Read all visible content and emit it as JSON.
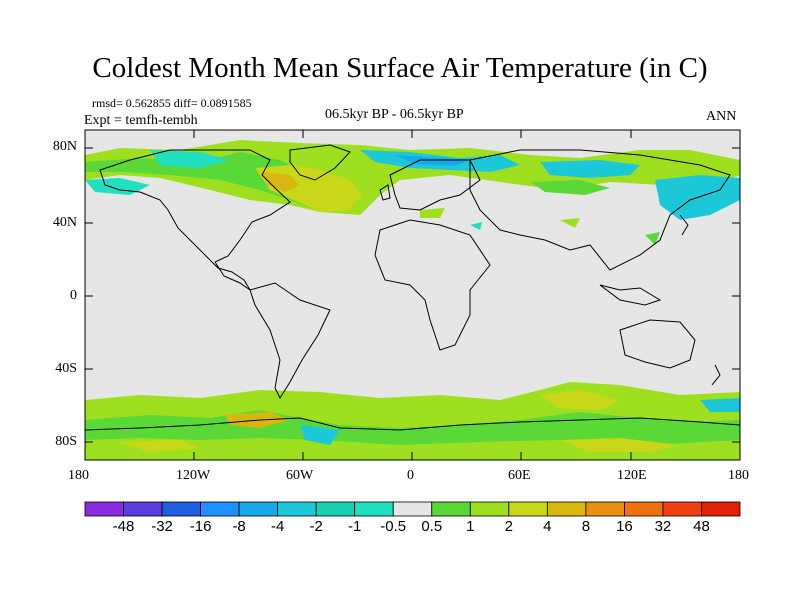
{
  "title": "Coldest Month Mean Surface Air Temperature (in C)",
  "stats": "rmsd= 0.562855 diff= 0.0891585",
  "experiment": "Expt = temfh-tembh",
  "period": "06.5kyr BP - 06.5kyr BP",
  "season": "ANN",
  "lat_labels": [
    "80N",
    "40N",
    "0",
    "40S",
    "80S"
  ],
  "lon_labels": [
    "180",
    "120W",
    "60W",
    "0",
    "60E",
    "120E",
    "180"
  ],
  "map_background": "#e6e6e6",
  "colorbar": {
    "labels": [
      "-48",
      "-32",
      "-16",
      "-8",
      "-4",
      "-2",
      "-1",
      "-0.5",
      "0.5",
      "1",
      "2",
      "4",
      "8",
      "16",
      "32",
      "48"
    ],
    "colors": [
      "#8a2be2",
      "#5a3ce0",
      "#1e5ee0",
      "#1e90ff",
      "#17a8e8",
      "#1cc8d8",
      "#18d0b0",
      "#20e0c0",
      "#e6e6e6",
      "#5ad838",
      "#9ee020",
      "#c8d818",
      "#d8b810",
      "#e89010",
      "#f07010",
      "#f04010",
      "#e02008"
    ]
  }
}
